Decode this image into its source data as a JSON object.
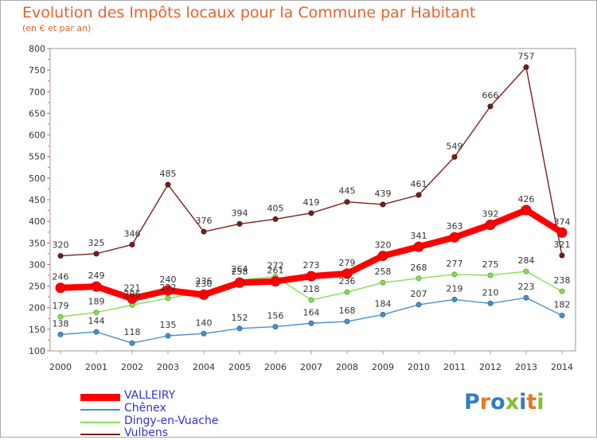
{
  "title": "Evolution des Impôts locaux pour la Commune par Habitant",
  "subtitle": "(en € et par an)",
  "logo": "Proxiti",
  "chart_data": {
    "type": "line",
    "title": "Evolution des Impôts locaux pour la Commune par Habitant",
    "subtitle": "(en € et par an)",
    "xlabel": "",
    "ylabel": "",
    "ylim": [
      100,
      800
    ],
    "yticks": [
      100,
      150,
      200,
      250,
      300,
      350,
      400,
      450,
      500,
      550,
      600,
      650,
      700,
      750,
      800
    ],
    "grid": false,
    "legend_position": "bottom-left",
    "x": [
      "2000",
      "2001",
      "2002",
      "2003",
      "2004",
      "2005",
      "2006",
      "2007",
      "2008",
      "2009",
      "2010",
      "2011",
      "2012",
      "2013",
      "2014"
    ],
    "series": [
      {
        "name": "VALLEIRY",
        "color": "#ff0000",
        "values": [
          246,
          249,
          221,
          240,
          230,
          258,
          261,
          273,
          279,
          320,
          341,
          363,
          392,
          426,
          374
        ]
      },
      {
        "name": "Chênex",
        "color": "#4f8fc8",
        "values": [
          138,
          144,
          118,
          135,
          140,
          152,
          156,
          164,
          168,
          184,
          207,
          219,
          210,
          223,
          182
        ]
      },
      {
        "name": "Dingy-en-Vuache",
        "color": "#88dd55",
        "values": [
          179,
          189,
          206,
          222,
          236,
          264,
          272,
          218,
          236,
          258,
          268,
          277,
          275,
          284,
          238
        ]
      },
      {
        "name": "Vulbens",
        "color": "#7a1f1f",
        "values": [
          320,
          325,
          346,
          485,
          376,
          394,
          405,
          419,
          445,
          439,
          461,
          549,
          666,
          757,
          321
        ]
      }
    ]
  }
}
